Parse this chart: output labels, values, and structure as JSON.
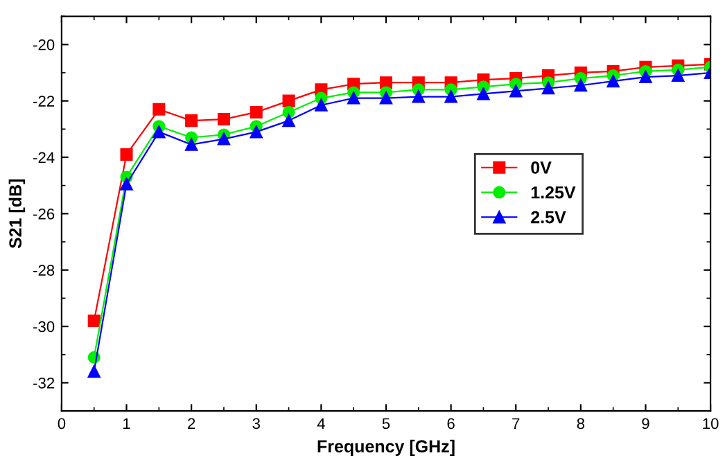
{
  "chart_data": {
    "type": "line",
    "xlabel": "Frequency [GHz]",
    "ylabel": "S21 [dB]",
    "x": [
      0.5,
      1,
      1.5,
      2,
      2.5,
      3,
      3.5,
      4,
      4.5,
      5,
      5.5,
      6,
      6.5,
      7,
      7.5,
      8,
      8.5,
      9,
      9.5,
      10
    ],
    "series": [
      {
        "name": "0V",
        "color": "#ff0000",
        "marker": "square",
        "values": [
          -29.8,
          -23.9,
          -22.3,
          -22.7,
          -22.65,
          -22.4,
          -22.0,
          -21.6,
          -21.4,
          -21.35,
          -21.35,
          -21.35,
          -21.25,
          -21.2,
          -21.1,
          -21.0,
          -20.95,
          -20.8,
          -20.75,
          -20.7
        ]
      },
      {
        "name": "1.25V",
        "color": "#00ee00",
        "marker": "circle",
        "values": [
          -31.1,
          -24.7,
          -22.9,
          -23.3,
          -23.2,
          -22.9,
          -22.4,
          -21.9,
          -21.7,
          -21.7,
          -21.6,
          -21.6,
          -21.5,
          -21.4,
          -21.35,
          -21.2,
          -21.1,
          -20.95,
          -20.9,
          -20.8
        ]
      },
      {
        "name": "2.5V",
        "color": "#0000ff",
        "marker": "triangle",
        "values": [
          -31.6,
          -24.95,
          -23.1,
          -23.55,
          -23.35,
          -23.1,
          -22.7,
          -22.15,
          -21.9,
          -21.9,
          -21.85,
          -21.85,
          -21.75,
          -21.65,
          -21.55,
          -21.45,
          -21.3,
          -21.15,
          -21.1,
          -21.0
        ]
      }
    ],
    "xlim": [
      0,
      10
    ],
    "xticks": [
      0,
      1,
      2,
      3,
      4,
      5,
      6,
      7,
      8,
      9,
      10
    ],
    "ylim": [
      -33,
      -19
    ],
    "yticks": [
      -32,
      -30,
      -28,
      -26,
      -24,
      -22,
      -20
    ],
    "legend": "right",
    "grid": false,
    "line_style": "solid"
  }
}
